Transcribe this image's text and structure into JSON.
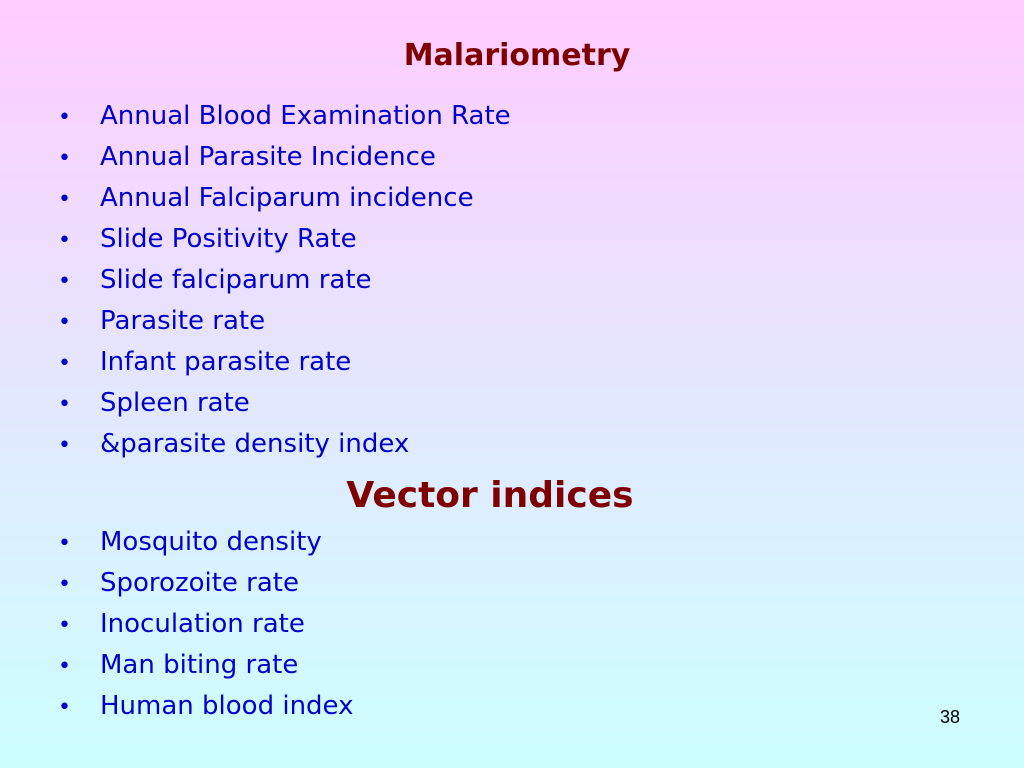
{
  "slide": {
    "title": "Malariometry",
    "malariometry_items": [
      "Annual Blood Examination Rate",
      "Annual Parasite Incidence",
      "Annual Falciparum incidence",
      "Slide Positivity Rate",
      "Slide falciparum rate",
      "Parasite rate",
      "Infant parasite rate",
      "Spleen rate",
      "&parasite density index"
    ],
    "section_title": "Vector indices",
    "vector_items": [
      "Mosquito density",
      "Sporozoite rate",
      "Inoculation rate",
      "Man biting rate",
      "Human blood index"
    ],
    "page_number": "38"
  },
  "colors": {
    "title": "#800000",
    "bullet_text": "#0000cc",
    "background_top": "#ffccff",
    "background_bottom": "#ccffff"
  }
}
